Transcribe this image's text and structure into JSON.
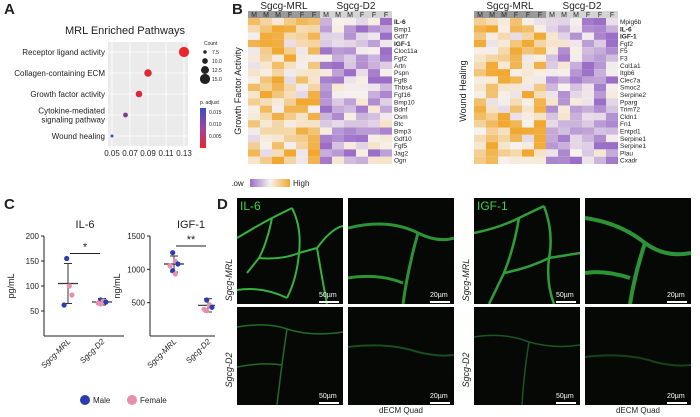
{
  "panels": {
    "a": "A",
    "b": "B",
    "c": "C",
    "d": "D"
  },
  "panel_a": {
    "title": "MRL Enriched Pathways",
    "pathways": [
      "Receptor ligand activity",
      "Collagen-containing ECM",
      "Growth factor activity",
      "Cytokine-mediated signaling pathway",
      "Wound healing"
    ],
    "pathway_lines": [
      [
        "Receptor ligand activity"
      ],
      [
        "Collagen-containing ECM"
      ],
      [
        "Growth factor activity"
      ],
      [
        "Cytokine-mediated",
        "signaling pathway"
      ],
      [
        "Wound healing"
      ]
    ],
    "x_ticks": [
      "0.05",
      "0.07",
      "0.09",
      "0.11",
      "0.13"
    ],
    "count_legend": {
      "title": "Count",
      "values": [
        "7.5",
        "10.0",
        "12.5",
        "15.0"
      ]
    },
    "padjust_legend": {
      "title": "p. adjust",
      "values": [
        "0.015",
        "0.010",
        "0.005"
      ]
    },
    "chart_data": {
      "type": "scatter",
      "title": "MRL Enriched Pathways",
      "categories": [
        "Receptor ligand activity",
        "Collagen-containing ECM",
        "Growth factor activity",
        "Cytokine-mediated signaling pathway",
        "Wound healing"
      ],
      "x": [
        0.13,
        0.09,
        0.08,
        0.065,
        0.05
      ],
      "count": [
        15,
        12,
        11,
        9,
        7
      ],
      "p_adjust": [
        0.001,
        0.002,
        0.002,
        0.01,
        0.015
      ],
      "xlim": [
        0.05,
        0.13
      ],
      "colors": {
        "low_p": "#e8262e",
        "high_p": "#3a4fc0"
      }
    }
  },
  "panel_b": {
    "left": {
      "group_mrl": "Sgcg-MRL",
      "group_d2": "Sgcg-D2",
      "sex_labels": [
        "M",
        "M",
        "M",
        "F",
        "F",
        "F",
        "M",
        "M",
        "M",
        "F",
        "F",
        "F"
      ],
      "side_label": "Growth Factor Activity",
      "genes": [
        "IL-6",
        "Bmp1",
        "Gdf7",
        "IGF-1",
        "Cloc11a",
        "Fgf2",
        "Artn",
        "Pspn",
        "Fgf8",
        "Thbs4",
        "Fgf16",
        "Bmp10",
        "Bdnf",
        "Osm",
        "Btc",
        "Bmp3",
        "Gdf10",
        "Fgf5",
        "Jag2",
        "Ogn"
      ],
      "bold_genes": [
        "IL-6",
        "IGF-1"
      ]
    },
    "right": {
      "group_mrl": "Sgcg-MRL",
      "group_d2": "Sgcg-D2",
      "sex_labels": [
        "M",
        "M",
        "M",
        "F",
        "F",
        "F",
        "M",
        "M",
        "M",
        "F",
        "F",
        "F"
      ],
      "side_label": "Wound Healing",
      "genes": [
        "Mpig6b",
        "IL-6",
        "IGF-1",
        "Fgf2",
        "F5",
        "F3",
        "Col1a1",
        "Itgb6",
        "Clec7a",
        "Smoc2",
        "Serpine2",
        "Pparg",
        "Trim72",
        "Cldn1",
        "Fn1",
        "Entpd1",
        "Serpine1",
        "Serpine1",
        "Plau",
        "Cxadr"
      ],
      "bold_genes": [
        "IL-6",
        "IGF-1"
      ]
    },
    "legend": {
      "low": "Low",
      "high": "High"
    },
    "colors": {
      "high": "#f0a830",
      "low": "#9b6fc8",
      "mid": "#f7f2ee"
    }
  },
  "panel_c": {
    "il6": {
      "title": "IL-6",
      "ylabel": "pg/mL",
      "sig": "*",
      "y_ticks": [
        "50",
        "100",
        "150",
        "200"
      ],
      "groups": [
        "Sgcg-MRL",
        "Sgcg-D2"
      ],
      "chart_data": {
        "type": "scatter",
        "title": "IL-6",
        "ylabel": "pg/mL",
        "ylim": [
          0,
          200
        ],
        "categories": [
          "Sgcg-MRL",
          "Sgcg-D2"
        ],
        "means": [
          105,
          68
        ],
        "error_high": [
          145,
          75
        ],
        "error_low": [
          65,
          62
        ],
        "points": [
          {
            "group": "Sgcg-MRL",
            "sex": "Male",
            "y": 155
          },
          {
            "group": "Sgcg-MRL",
            "sex": "Female",
            "y": 100
          },
          {
            "group": "Sgcg-MRL",
            "sex": "Female",
            "y": 82
          },
          {
            "group": "Sgcg-MRL",
            "sex": "Male",
            "y": 62
          },
          {
            "group": "Sgcg-D2",
            "sex": "Male",
            "y": 72
          },
          {
            "group": "Sgcg-D2",
            "sex": "Female",
            "y": 70
          },
          {
            "group": "Sgcg-D2",
            "sex": "Male",
            "y": 68
          },
          {
            "group": "Sgcg-D2",
            "sex": "Female",
            "y": 66
          },
          {
            "group": "Sgcg-D2",
            "sex": "Female",
            "y": 64
          }
        ]
      }
    },
    "igf1": {
      "title": "IGF-1",
      "ylabel": "ng/mL",
      "sig": "**",
      "y_ticks": [
        "500",
        "1000",
        "1500"
      ],
      "groups": [
        "Sgcg-MRL",
        "Sgcg-D2"
      ],
      "chart_data": {
        "type": "scatter",
        "title": "IGF-1",
        "ylabel": "ng/mL",
        "ylim": [
          0,
          1500
        ],
        "categories": [
          "Sgcg-MRL",
          "Sgcg-D2"
        ],
        "means": [
          1080,
          460
        ],
        "error_high": [
          1200,
          560
        ],
        "error_low": [
          960,
          360
        ],
        "points": [
          {
            "group": "Sgcg-MRL",
            "sex": "Male",
            "y": 1250
          },
          {
            "group": "Sgcg-MRL",
            "sex": "Female",
            "y": 1120
          },
          {
            "group": "Sgcg-MRL",
            "sex": "Male",
            "y": 1080
          },
          {
            "group": "Sgcg-MRL",
            "sex": "Female",
            "y": 1050
          },
          {
            "group": "Sgcg-MRL",
            "sex": "Male",
            "y": 980
          },
          {
            "group": "Sgcg-MRL",
            "sex": "Female",
            "y": 930
          },
          {
            "group": "Sgcg-D2",
            "sex": "Male",
            "y": 540
          },
          {
            "group": "Sgcg-D2",
            "sex": "Female",
            "y": 470
          },
          {
            "group": "Sgcg-D2",
            "sex": "Male",
            "y": 430
          },
          {
            "group": "Sgcg-D2",
            "sex": "Female",
            "y": 400
          },
          {
            "group": "Sgcg-D2",
            "sex": "Female",
            "y": 380
          }
        ]
      }
    },
    "legend": {
      "male": "Male",
      "female": "Female",
      "male_color": "#2b3bb0",
      "female_color": "#e88fb0"
    }
  },
  "panel_d": {
    "left_stain": "IL-6",
    "right_stain": "IGF-1",
    "row_mrl": "Sgcg-MRL",
    "row_d2": "Sgcg-D2",
    "scale_large": "50µm",
    "scale_small": "20µm",
    "caption": "dECM Quad",
    "stain_color": "#3fd04a"
  }
}
